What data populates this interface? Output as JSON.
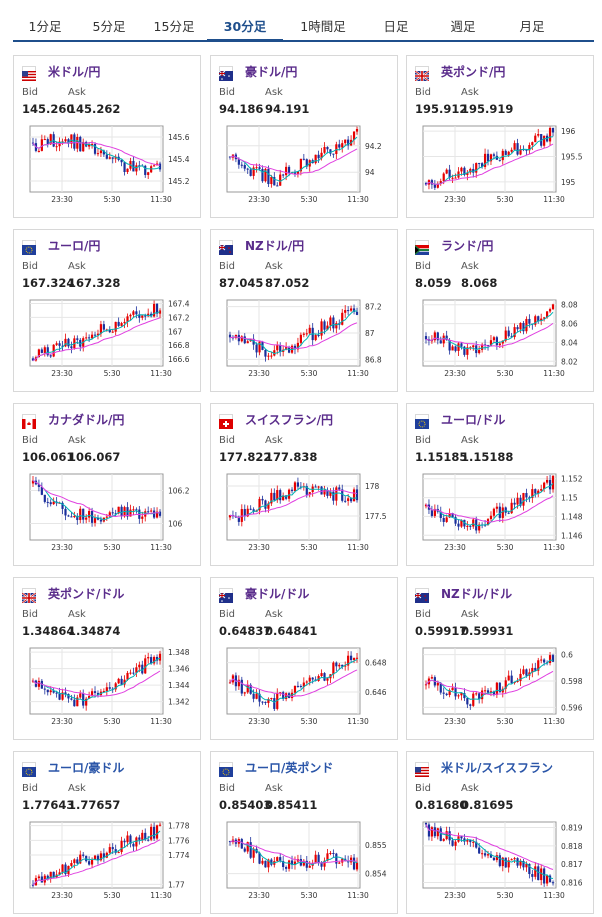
{
  "tabs": [
    "1分足",
    "5分足",
    "15分足",
    "30分足",
    "1時間足",
    "日足",
    "週足",
    "月足"
  ],
  "active_tab": 3,
  "labels": {
    "bid": "Bid",
    "ask": "Ask"
  },
  "x_ticks": [
    "23:30",
    "5:30",
    "11:30"
  ],
  "colors": {
    "up": "#e60000",
    "down": "#1a2f9c",
    "ma_short": "#00b3b3",
    "ma_long": "#e040e0",
    "frame": "#999999",
    "grid": "#e6e6e6"
  },
  "cards": [
    {
      "name": "米ドル/円",
      "flag": "flag-us",
      "bid": "145.260",
      "ask": "145.262",
      "ticks": [
        "145.6",
        "145.4",
        "145.2"
      ],
      "ylim": [
        145.1,
        145.7
      ],
      "trend": "down-up-down",
      "color": "purple"
    },
    {
      "name": "豪ドル/円",
      "flag": "flag-au",
      "bid": "94.186",
      "ask": "94.191",
      "ticks": [
        "94.2",
        "94"
      ],
      "ylim": [
        93.85,
        94.35
      ],
      "trend": "dip-rise",
      "color": "purple"
    },
    {
      "name": "英ポンド/円",
      "flag": "flag-gb",
      "bid": "195.912",
      "ask": "195.919",
      "ticks": [
        "196",
        "195.5",
        "195"
      ],
      "ylim": [
        194.8,
        196.1
      ],
      "trend": "rise",
      "color": "purple"
    },
    {
      "name": "ユーロ/円",
      "flag": "flag-eu",
      "bid": "167.324",
      "ask": "167.328",
      "ticks": [
        "167.4",
        "167.2",
        "167",
        "166.8",
        "166.6"
      ],
      "ylim": [
        166.5,
        167.45
      ],
      "trend": "rise",
      "color": "purple"
    },
    {
      "name": "NZドル/円",
      "flag": "flag-nz",
      "bid": "87.045",
      "ask": "87.052",
      "ticks": [
        "87.2",
        "87",
        "86.8"
      ],
      "ylim": [
        86.75,
        87.25
      ],
      "trend": "dip-rise",
      "color": "purple"
    },
    {
      "name": "ランド/円",
      "flag": "flag-za",
      "bid": "8.059",
      "ask": "8.068",
      "ticks": [
        "8.08",
        "8.06",
        "8.04",
        "8.02"
      ],
      "ylim": [
        8.015,
        8.085
      ],
      "trend": "dip-rise",
      "color": "purple"
    },
    {
      "name": "カナダドル/円",
      "flag": "flag-ca",
      "bid": "106.061",
      "ask": "106.067",
      "ticks": [
        "106.2",
        "106"
      ],
      "ylim": [
        105.9,
        106.3
      ],
      "trend": "down-flat",
      "color": "purple"
    },
    {
      "name": "スイスフラン/円",
      "flag": "flag-ch",
      "bid": "177.822",
      "ask": "177.838",
      "ticks": [
        "178",
        "177.5"
      ],
      "ylim": [
        177.1,
        178.2
      ],
      "trend": "rise-flat",
      "color": "purple"
    },
    {
      "name": "ユーロ/ドル",
      "flag": "flag-eu",
      "bid": "1.15185",
      "ask": "1.15188",
      "ticks": [
        "1.152",
        "1.15",
        "1.148",
        "1.146"
      ],
      "ylim": [
        1.1455,
        1.1525
      ],
      "trend": "dip-rise",
      "color": "purple"
    },
    {
      "name": "英ポンド/ドル",
      "flag": "flag-gb",
      "bid": "1.34864",
      "ask": "1.34874",
      "ticks": [
        "1.348",
        "1.346",
        "1.344",
        "1.342"
      ],
      "ylim": [
        1.3405,
        1.3485
      ],
      "trend": "dip-rise",
      "color": "purple"
    },
    {
      "name": "豪ドル/ドル",
      "flag": "flag-au",
      "bid": "0.64837",
      "ask": "0.64841",
      "ticks": [
        "0.648",
        "0.646"
      ],
      "ylim": [
        0.6445,
        0.649
      ],
      "trend": "dip-rise",
      "color": "purple"
    },
    {
      "name": "NZドル/ドル",
      "flag": "flag-nz",
      "bid": "0.59917",
      "ask": "0.59931",
      "ticks": [
        "0.6",
        "0.598",
        "0.596"
      ],
      "ylim": [
        0.5955,
        0.6005
      ],
      "trend": "dip-rise",
      "color": "purple"
    },
    {
      "name": "ユーロ/豪ドル",
      "flag": "flag-eu",
      "bid": "1.77643",
      "ask": "1.77657",
      "ticks": [
        "1.778",
        "1.776",
        "1.774",
        "1.77"
      ],
      "ylim": [
        1.7695,
        1.7785
      ],
      "trend": "rise",
      "color": "blue"
    },
    {
      "name": "ユーロ/英ポンド",
      "flag": "flag-eu",
      "bid": "0.85403",
      "ask": "0.85411",
      "ticks": [
        "0.855",
        "0.854"
      ],
      "ylim": [
        0.8535,
        0.8558
      ],
      "trend": "down-flat",
      "color": "blue"
    },
    {
      "name": "米ドル/スイスフラン",
      "flag": "flag-us",
      "bid": "0.81680",
      "ask": "0.81695",
      "ticks": [
        "0.819",
        "0.818",
        "0.817",
        "0.816"
      ],
      "ylim": [
        0.8157,
        0.8193
      ],
      "trend": "down",
      "color": "blue"
    }
  ]
}
